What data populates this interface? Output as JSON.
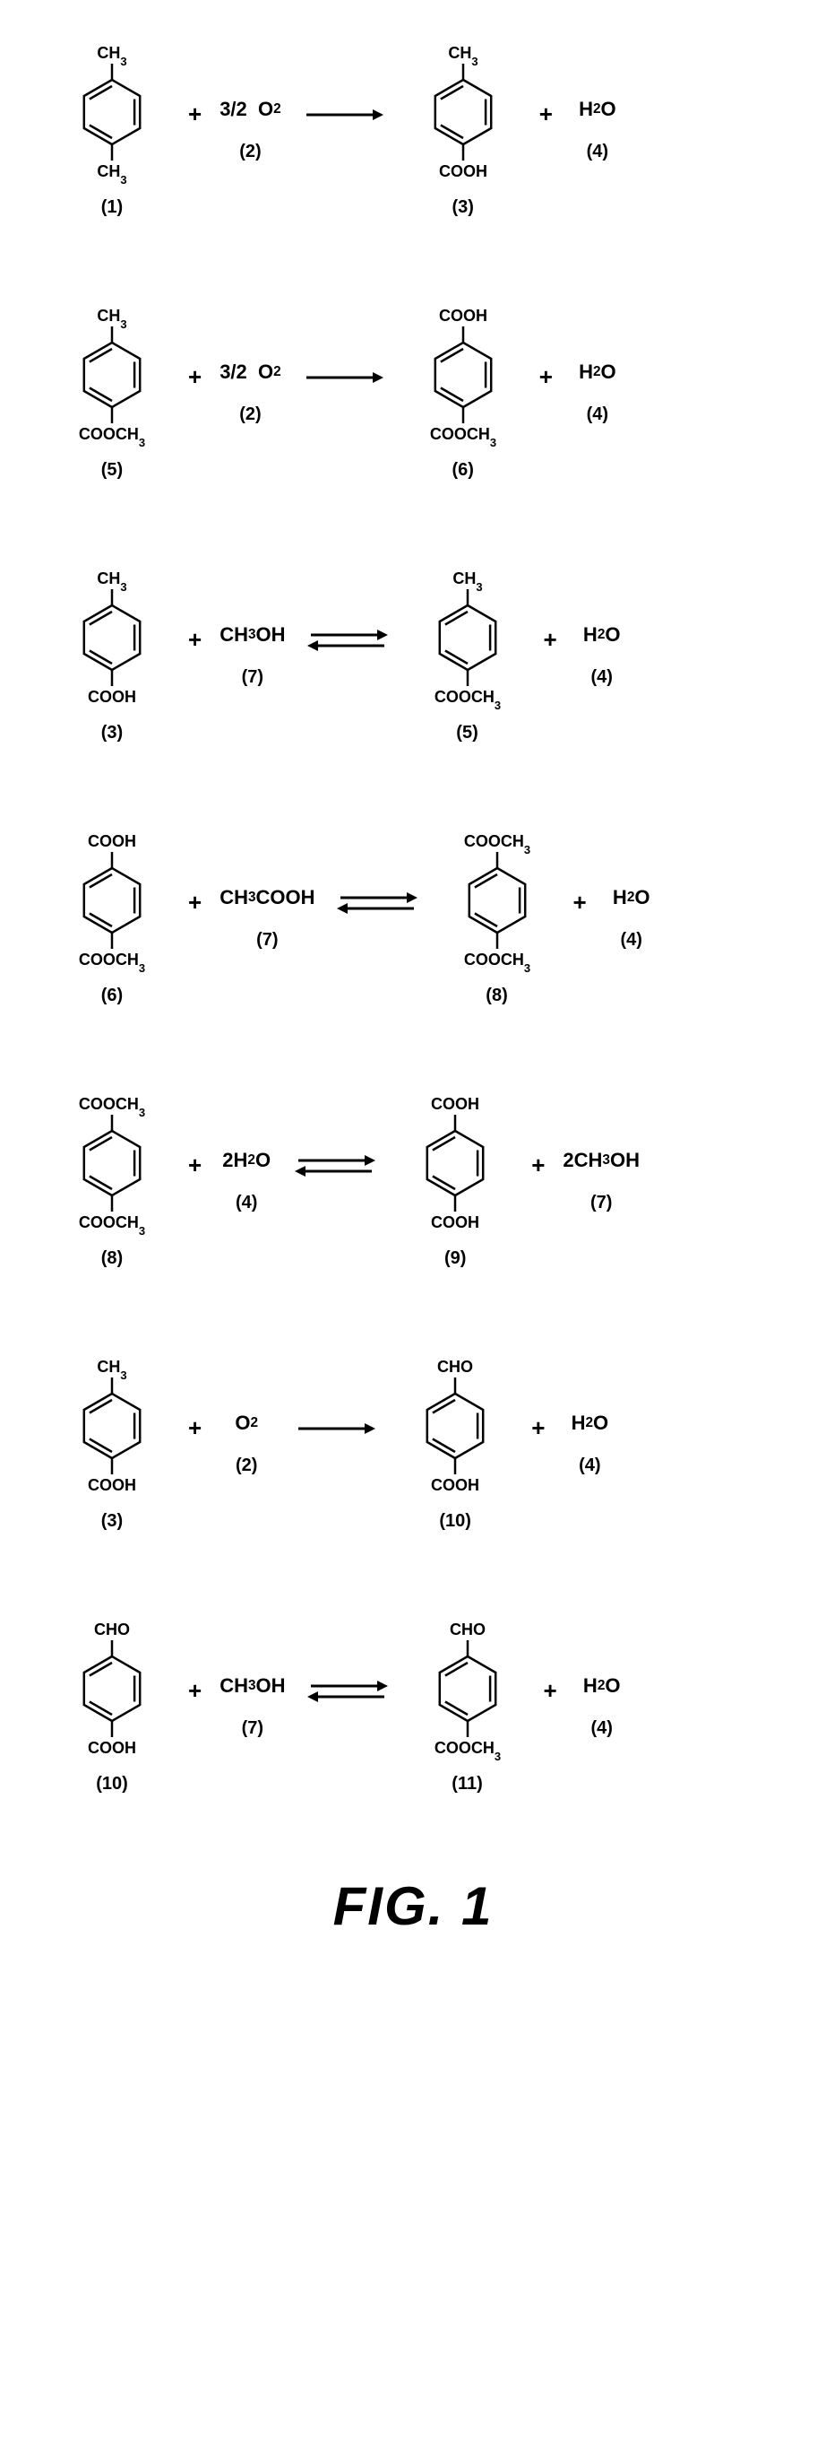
{
  "figure_caption": "FIG. 1",
  "colors": {
    "stroke": "#000000",
    "background": "#ffffff"
  },
  "reactions": [
    {
      "reactants": [
        {
          "type": "benzene",
          "top": "CH₃",
          "bottom": "CH₃",
          "label": "(1)"
        },
        {
          "type": "text",
          "coeff": "3/2",
          "formula": "O₂",
          "label": "(2)"
        }
      ],
      "arrow": "forward",
      "products": [
        {
          "type": "benzene",
          "top": "CH₃",
          "bottom": "COOH",
          "label": "(3)"
        },
        {
          "type": "text",
          "formula": "H₂O",
          "label": "(4)"
        }
      ]
    },
    {
      "reactants": [
        {
          "type": "benzene",
          "top": "CH₃",
          "bottom": "COOCH₃",
          "label": "(5)"
        },
        {
          "type": "text",
          "coeff": "3/2",
          "formula": "O₂",
          "label": "(2)"
        }
      ],
      "arrow": "forward",
      "products": [
        {
          "type": "benzene",
          "top": "COOH",
          "bottom": "COOCH₃",
          "label": "(6)"
        },
        {
          "type": "text",
          "formula": "H₂O",
          "label": "(4)"
        }
      ]
    },
    {
      "reactants": [
        {
          "type": "benzene",
          "top": "CH₃",
          "bottom": "COOH",
          "label": "(3)"
        },
        {
          "type": "text",
          "formula": "CH₃OH",
          "label": "(7)"
        }
      ],
      "arrow": "equilibrium",
      "products": [
        {
          "type": "benzene",
          "top": "CH₃",
          "bottom": "COOCH₃",
          "label": "(5)"
        },
        {
          "type": "text",
          "formula": "H₂O",
          "label": "(4)"
        }
      ]
    },
    {
      "reactants": [
        {
          "type": "benzene",
          "top": "COOH",
          "bottom": "COOCH₃",
          "label": "(6)"
        },
        {
          "type": "text",
          "formula": "CH₃COOH",
          "label": "(7)"
        }
      ],
      "arrow": "equilibrium",
      "products": [
        {
          "type": "benzene",
          "top": "COOCH₃",
          "bottom": "COOCH₃",
          "label": "(8)"
        },
        {
          "type": "text",
          "formula": "H₂O",
          "label": "(4)"
        }
      ]
    },
    {
      "reactants": [
        {
          "type": "benzene",
          "top": "COOCH₃",
          "bottom": "COOCH₃",
          "label": "(8)"
        },
        {
          "type": "text",
          "formula": "2H₂O",
          "label": "(4)"
        }
      ],
      "arrow": "equilibrium",
      "products": [
        {
          "type": "benzene",
          "top": "COOH",
          "bottom": "COOH",
          "label": "(9)"
        },
        {
          "type": "text",
          "formula": "2CH₃OH",
          "label": "(7)"
        }
      ]
    },
    {
      "reactants": [
        {
          "type": "benzene",
          "top": "CH₃",
          "bottom": "COOH",
          "label": "(3)"
        },
        {
          "type": "text",
          "formula": "O₂",
          "label": "(2)"
        }
      ],
      "arrow": "forward",
      "products": [
        {
          "type": "benzene",
          "top": "CHO",
          "bottom": "COOH",
          "label": "(10)"
        },
        {
          "type": "text",
          "formula": "H₂O",
          "label": "(4)"
        }
      ]
    },
    {
      "reactants": [
        {
          "type": "benzene",
          "top": "CHO",
          "bottom": "COOH",
          "label": "(10)"
        },
        {
          "type": "text",
          "formula": "CH₃OH",
          "label": "(7)"
        }
      ],
      "arrow": "equilibrium",
      "products": [
        {
          "type": "benzene",
          "top": "CHO",
          "bottom": "COOCH₃",
          "label": "(11)"
        },
        {
          "type": "text",
          "formula": "H₂O",
          "label": "(4)"
        }
      ]
    }
  ]
}
